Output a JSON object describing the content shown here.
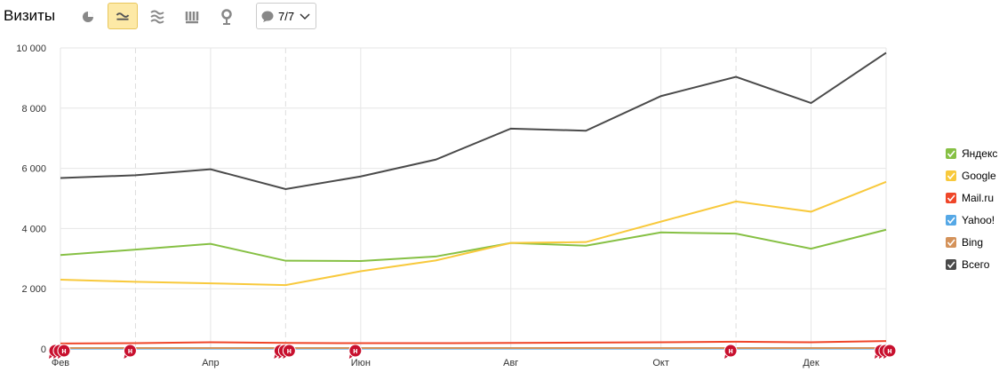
{
  "header": {
    "title": "Визиты",
    "filter": "7/7"
  },
  "chart_data": {
    "type": "line",
    "categories": [
      "Фев",
      null,
      "Апр",
      null,
      "Июн",
      null,
      "Авг",
      null,
      "Окт",
      null,
      "Дек",
      null
    ],
    "series": [
      {
        "name": "Яндекс",
        "color": "#86c044",
        "values": [
          3120,
          3300,
          3490,
          2930,
          2920,
          3070,
          3520,
          3430,
          3870,
          3830,
          3330,
          3960
        ]
      },
      {
        "name": "Google",
        "color": "#f8c93c",
        "values": [
          2300,
          2230,
          2180,
          2120,
          2580,
          2940,
          3520,
          3550,
          4230,
          4900,
          4560,
          5550
        ]
      },
      {
        "name": "Mail.ru",
        "color": "#ef4629",
        "values": [
          180,
          190,
          220,
          200,
          190,
          190,
          200,
          210,
          220,
          240,
          220,
          260
        ]
      },
      {
        "name": "Yahoo!",
        "color": "#55a8e6",
        "values": [
          10,
          10,
          10,
          10,
          10,
          10,
          10,
          10,
          10,
          10,
          10,
          10
        ]
      },
      {
        "name": "Bing",
        "color": "#d4925a",
        "values": [
          30,
          30,
          30,
          30,
          30,
          30,
          30,
          30,
          30,
          30,
          30,
          30
        ]
      },
      {
        "name": "Всего",
        "color": "#4a4a4a",
        "values": [
          5680,
          5770,
          5970,
          5310,
          5730,
          6290,
          7320,
          7250,
          8400,
          9040,
          8170,
          9840
        ]
      }
    ],
    "ylim": [
      0,
      10000
    ],
    "yticks": [
      0,
      {
        "value": 2000,
        "label": "2 000"
      },
      {
        "value": 4000,
        "label": "4 000"
      },
      {
        "value": 6000,
        "label": "6 000"
      },
      {
        "value": 8000,
        "label": "8 000"
      },
      {
        "value": 10000,
        "label": "10 000"
      }
    ],
    "grid": true,
    "legend": "right",
    "annotations": [
      {
        "at": 0,
        "label": "н"
      },
      {
        "at": 0,
        "label": "н"
      },
      {
        "at": 0,
        "label": "н"
      },
      {
        "at": 1,
        "label": "н"
      },
      {
        "at": 3,
        "label": "н"
      },
      {
        "at": 3,
        "label": "н"
      },
      {
        "at": 3,
        "label": "н"
      },
      {
        "at": 4,
        "label": "н"
      },
      {
        "at": 9,
        "label": "н"
      },
      {
        "at": 11,
        "label": "н"
      },
      {
        "at": 11,
        "label": "н"
      },
      {
        "at": 11,
        "label": "н"
      }
    ]
  }
}
